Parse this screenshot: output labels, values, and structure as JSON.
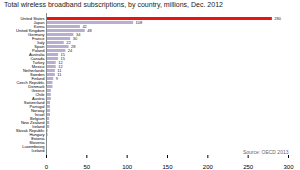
{
  "chart_data": {
    "type": "bar",
    "orientation": "horizontal",
    "title": "Total wireless broadband subscriptions, by country, millions, Dec. 2012",
    "categories": [
      "United States",
      "Japan",
      "Korea",
      "United Kingdom",
      "Germany",
      "France",
      "Italy",
      "Spain",
      "Poland",
      "Australia",
      "Canada",
      "Turkey",
      "Mexico",
      "Netherlands",
      "Sweden",
      "Finland",
      "Czech Republic",
      "Denmark",
      "Greece",
      "Chile",
      "Austria",
      "Switzerland",
      "Portugal",
      "Norway",
      "Israel",
      "Belgium",
      "New Zealand",
      "Ireland",
      "Slovak Republic",
      "Hungary",
      "Estonia",
      "Slovenia",
      "Luxembourg",
      "Iceland"
    ],
    "values": [
      280,
      108,
      42,
      48,
      34,
      30,
      22,
      28,
      24,
      15,
      15,
      12,
      12,
      11,
      11,
      9,
      8,
      8,
      6,
      6,
      6,
      5,
      5,
      5,
      5,
      4,
      4,
      4,
      2,
      2,
      1,
      1,
      0.5,
      0.5
    ],
    "data_labels": true,
    "value_labels": [
      "280",
      "108",
      "42",
      "48",
      "34",
      "30",
      "22",
      "28",
      "24",
      "15",
      "15",
      "12",
      "12",
      "11",
      "11",
      "9",
      null,
      null,
      null,
      null,
      null,
      null,
      null,
      null,
      null,
      null,
      null,
      null,
      null,
      null,
      null,
      null,
      null,
      null
    ],
    "colors": [
      "#ee1111",
      "#b8aed0",
      "#b8aed0",
      "#b8aed0",
      "#b8aed0",
      "#b8aed0",
      "#b8aed0",
      "#b8aed0",
      "#b8aed0",
      "#b8aed0",
      "#b8aed0",
      "#b8aed0",
      "#b8aed0",
      "#b8aed0",
      "#b8aed0",
      "#b8aed0",
      "#b8aed0",
      "#b8aed0",
      "#b8aed0",
      "#b8aed0",
      "#b8aed0",
      "#b8aed0",
      "#b8aed0",
      "#b8aed0",
      "#b8aed0",
      "#b8aed0",
      "#b8aed0",
      "#b8aed0",
      "#b8aed0",
      "#b8aed0",
      "#b8aed0",
      "#b8aed0",
      "#b8aed0",
      "#b8aed0"
    ],
    "xlim": [
      0,
      300
    ],
    "xticks": [
      0,
      50,
      100,
      150,
      200,
      250,
      300
    ],
    "grid": false,
    "annotations": [
      "Source: OECD 2013"
    ]
  }
}
